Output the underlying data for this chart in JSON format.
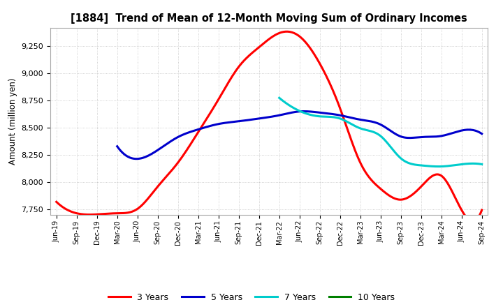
{
  "title": "[1884]  Trend of Mean of 12-Month Moving Sum of Ordinary Incomes",
  "ylabel": "Amount (million yen)",
  "background_color": "#ffffff",
  "plot_bg_color": "#ffffff",
  "grid_color": "#999999",
  "ylim": [
    7700,
    9420
  ],
  "yticks": [
    7750,
    8000,
    8250,
    8500,
    8750,
    9000,
    9250
  ],
  "x_labels": [
    "Jun-19",
    "Sep-19",
    "Dec-19",
    "Mar-20",
    "Jun-20",
    "Sep-20",
    "Dec-20",
    "Mar-21",
    "Jun-21",
    "Sep-21",
    "Dec-21",
    "Mar-22",
    "Jun-22",
    "Sep-22",
    "Dec-22",
    "Mar-23",
    "Jun-23",
    "Sep-23",
    "Dec-23",
    "Mar-24",
    "Jun-24",
    "Sep-24"
  ],
  "series": {
    "3 Years": {
      "color": "#ff0000",
      "linewidth": 2.2,
      "data_indices": [
        0,
        1,
        2,
        3,
        4,
        5,
        6,
        7,
        8,
        9,
        10,
        11,
        12,
        13,
        14,
        15,
        16,
        17,
        18,
        19,
        20,
        21
      ],
      "values": [
        7820,
        7715,
        7705,
        7715,
        7755,
        7960,
        8180,
        8460,
        8760,
        9060,
        9240,
        9370,
        9340,
        9090,
        8680,
        8180,
        7940,
        7840,
        7960,
        8060,
        7745,
        7745
      ]
    },
    "5 Years": {
      "color": "#0000cc",
      "linewidth": 2.2,
      "data_indices": [
        3,
        4,
        5,
        6,
        7,
        8,
        9,
        10,
        11,
        12,
        13,
        14,
        15,
        16,
        17,
        18,
        19,
        20,
        21
      ],
      "values": [
        8330,
        8215,
        8295,
        8415,
        8485,
        8535,
        8560,
        8585,
        8615,
        8650,
        8640,
        8615,
        8575,
        8530,
        8420,
        8415,
        8425,
        8475,
        8445
      ]
    },
    "7 Years": {
      "color": "#00cccc",
      "linewidth": 2.2,
      "data_indices": [
        11,
        12,
        13,
        14,
        15,
        16,
        17,
        18,
        19,
        20,
        21
      ],
      "values": [
        8775,
        8655,
        8605,
        8585,
        8495,
        8425,
        8220,
        8155,
        8145,
        8165,
        8165
      ]
    },
    "10 Years": {
      "color": "#008000",
      "linewidth": 2.2,
      "data_indices": [],
      "values": []
    }
  },
  "legend_order": [
    "3 Years",
    "5 Years",
    "7 Years",
    "10 Years"
  ]
}
